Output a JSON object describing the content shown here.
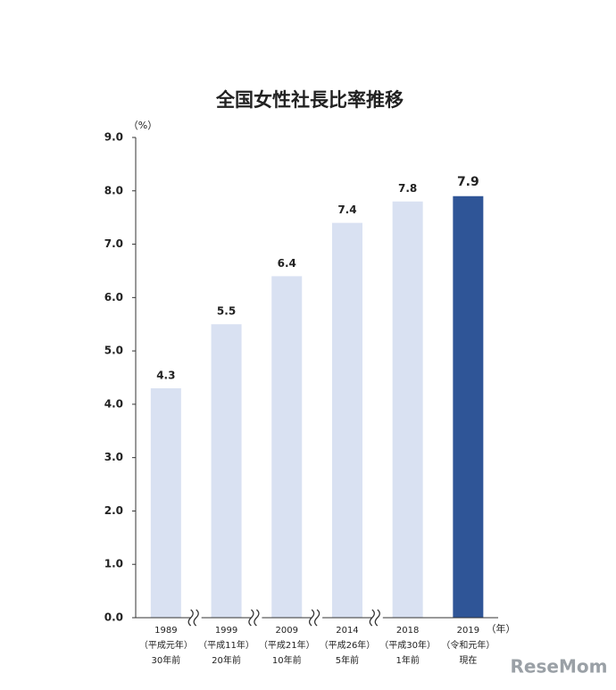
{
  "chart_data": {
    "type": "bar",
    "title": "全国女性社長比率推移",
    "y_unit": "（%）",
    "x_unit": "（年）",
    "categories": [
      [
        "1989",
        "（平成元年）",
        "30年前"
      ],
      [
        "1999",
        "（平成11年）",
        "20年前"
      ],
      [
        "2009",
        "（平成21年）",
        "10年前"
      ],
      [
        "2014",
        "（平成26年）",
        "5年前"
      ],
      [
        "2018",
        "（平成30年）",
        "1年前"
      ],
      [
        "2019",
        "（令和元年）",
        "現在"
      ]
    ],
    "values": [
      4.3,
      5.5,
      6.4,
      7.4,
      7.8,
      7.9
    ],
    "colors": [
      "#d9e1f2",
      "#d9e1f2",
      "#d9e1f2",
      "#d9e1f2",
      "#d9e1f2",
      "#2f5597"
    ],
    "ylim": [
      0,
      9
    ],
    "yticks": [
      {
        "value": 0,
        "label": "0.0"
      },
      {
        "value": 1,
        "label": "1.0"
      },
      {
        "value": 2,
        "label": "2.0"
      },
      {
        "value": 3,
        "label": "3.0"
      },
      {
        "value": 4,
        "label": "4.0"
      },
      {
        "value": 5,
        "label": "5.0"
      },
      {
        "value": 6,
        "label": "6.0"
      },
      {
        "value": 7,
        "label": "7.0"
      },
      {
        "value": 8,
        "label": "8.0"
      },
      {
        "value": 9,
        "label": "9.0"
      }
    ],
    "watermark": "ReseMom"
  }
}
